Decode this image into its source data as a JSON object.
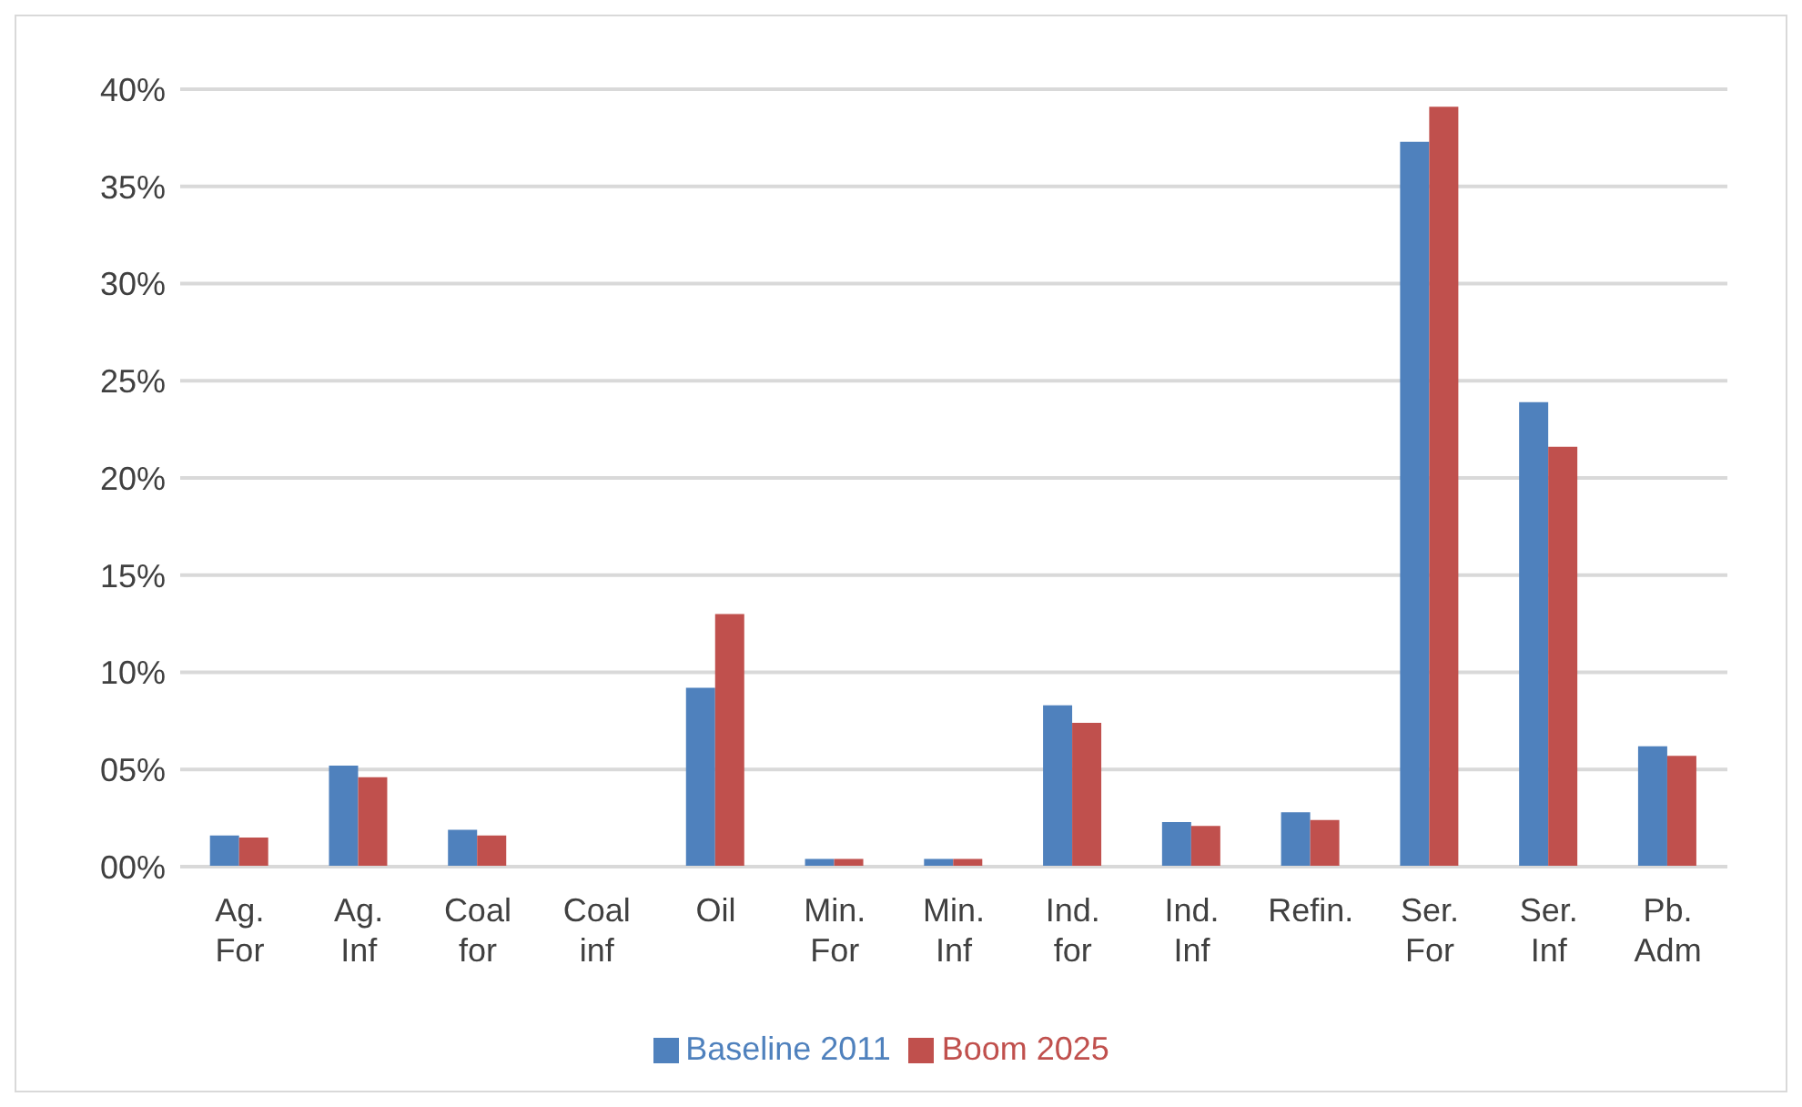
{
  "chart_data": {
    "type": "bar",
    "categories": [
      "Ag. For",
      "Ag. Inf",
      "Coal for",
      "Coal inf",
      "Oil",
      "Min. For",
      "Min. Inf",
      "Ind. for",
      "Ind. Inf",
      "Refin.",
      "Ser. For",
      "Ser. Inf",
      "Pb. Adm"
    ],
    "series": [
      {
        "name": "Baseline 2011",
        "color": "#4f81bd",
        "values": [
          1.6,
          5.2,
          1.9,
          0,
          9.2,
          0.4,
          0.4,
          8.3,
          2.3,
          2.8,
          37.3,
          23.9,
          6.2
        ]
      },
      {
        "name": "Boom 2025",
        "color": "#c0504d",
        "values": [
          1.5,
          4.6,
          1.6,
          0,
          13.0,
          0.4,
          0.4,
          7.4,
          2.1,
          2.4,
          39.1,
          21.6,
          5.7
        ]
      }
    ],
    "ylim": [
      0,
      40
    ],
    "yticks": [
      {
        "value": 0,
        "label": "00%"
      },
      {
        "value": 5,
        "label": "05%"
      },
      {
        "value": 10,
        "label": "10%"
      },
      {
        "value": 15,
        "label": "15%"
      },
      {
        "value": 20,
        "label": "20%"
      },
      {
        "value": 25,
        "label": "25%"
      },
      {
        "value": 30,
        "label": "30%"
      },
      {
        "value": 35,
        "label": "35%"
      },
      {
        "value": 40,
        "label": "40%"
      }
    ],
    "grid": "y",
    "legend": "bottom"
  }
}
